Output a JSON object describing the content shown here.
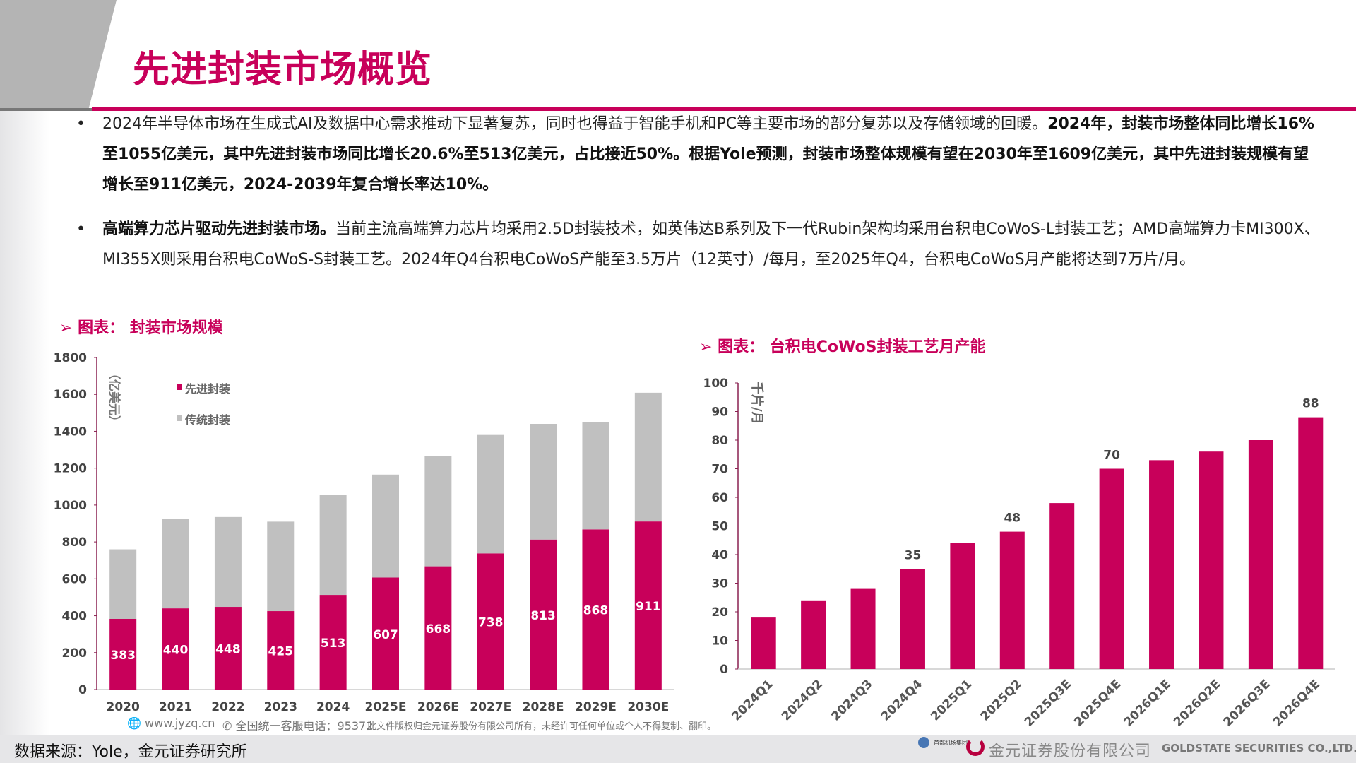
{
  "header": {
    "title": "先进封装市场概览"
  },
  "bullets": [
    {
      "plain": "2024年半导体市场在生成式AI及数据中心需求推动下显著复苏，同时也得益于智能手机和PC等主要市场的部分复苏以及存储领域的回暖。",
      "bold": "2024年，封装市场整体同比增长16%至1055亿美元，其中先进封装市场同比增长20.6%至513亿美元，占比接近50%。根据Yole预测，封装市场整体规模有望在2030年至1609亿美元，其中先进封装规模有望增长至911亿美元，2024-2039年复合增长率达10%。"
    },
    {
      "bold": "高端算力芯片驱动先进封装市场。",
      "plain": "当前主流高端算力芯片均采用2.5D封装技术，如英伟达B系列及下一代Rubin架构均采用台积电CoWoS-L封装工艺；AMD高端算力卡MI300X、MI355X则采用台积电CoWoS-S封装工艺。2024年Q4台积电CoWoS产能至3.5万片（12英寸）/每月，至2025年Q4，台积电CoWoS月产能将达到7万片/月。"
    }
  ],
  "bullet_symbol": "•",
  "chart_marker": "➢",
  "chart_data": [
    {
      "type": "bar",
      "stacked": true,
      "title": "图表：  封装市场规模",
      "ylabel": "（亿美元）",
      "ylim": [
        0,
        1800
      ],
      "yticks": [
        0,
        200,
        400,
        600,
        800,
        1000,
        1200,
        1400,
        1600,
        1800
      ],
      "categories": [
        "2020",
        "2021",
        "2022",
        "2023",
        "2024",
        "2025E",
        "2026E",
        "2027E",
        "2028E",
        "2029E",
        "2030E"
      ],
      "series": [
        {
          "name": "先进封装",
          "color": "#c8005a",
          "values": [
            383,
            440,
            448,
            425,
            513,
            607,
            668,
            738,
            813,
            868,
            911
          ]
        },
        {
          "name": "传统封装",
          "color": "#c0c0c0",
          "values": [
            377,
            485,
            487,
            485,
            542,
            558,
            597,
            642,
            627,
            582,
            698
          ]
        }
      ],
      "legend": "top-left",
      "data_labels": "先进封装 values"
    },
    {
      "type": "bar",
      "title": "图表：  台积电CoWoS封装工艺月产能",
      "ylabel": "千片/月",
      "ylim": [
        0,
        100
      ],
      "yticks": [
        0,
        10,
        20,
        30,
        40,
        50,
        60,
        70,
        80,
        90,
        100
      ],
      "categories": [
        "2024Q1",
        "2024Q2",
        "2024Q3",
        "2024Q4",
        "2025Q1",
        "2025Q2",
        "2025Q3E",
        "2025Q4E",
        "2026Q1E",
        "2026Q2E",
        "2026Q3E",
        "2026Q4E"
      ],
      "values": [
        18,
        24,
        28,
        35,
        44,
        48,
        58,
        70,
        73,
        76,
        80,
        88
      ],
      "color": "#c8005a",
      "labeled_points": {
        "2024Q4": "35",
        "2025Q2": "48",
        "2025Q4E": "70",
        "2026Q4E": "88"
      }
    }
  ],
  "footer": {
    "website": "www.jyzq.cn",
    "hotline": "全国统一客服电话：95372",
    "copyright": "此文件版权归金元证券股份有限公司所有，未经许可任何单位或个人不得复制、翻印。",
    "logo_cn": "金元证券股份有限公司",
    "logo_en": "GOLDSTATE SECURITIES CO.,LTD.",
    "partner": "首都机场集团",
    "source": "数据来源：Yole，金元证券研究所"
  }
}
